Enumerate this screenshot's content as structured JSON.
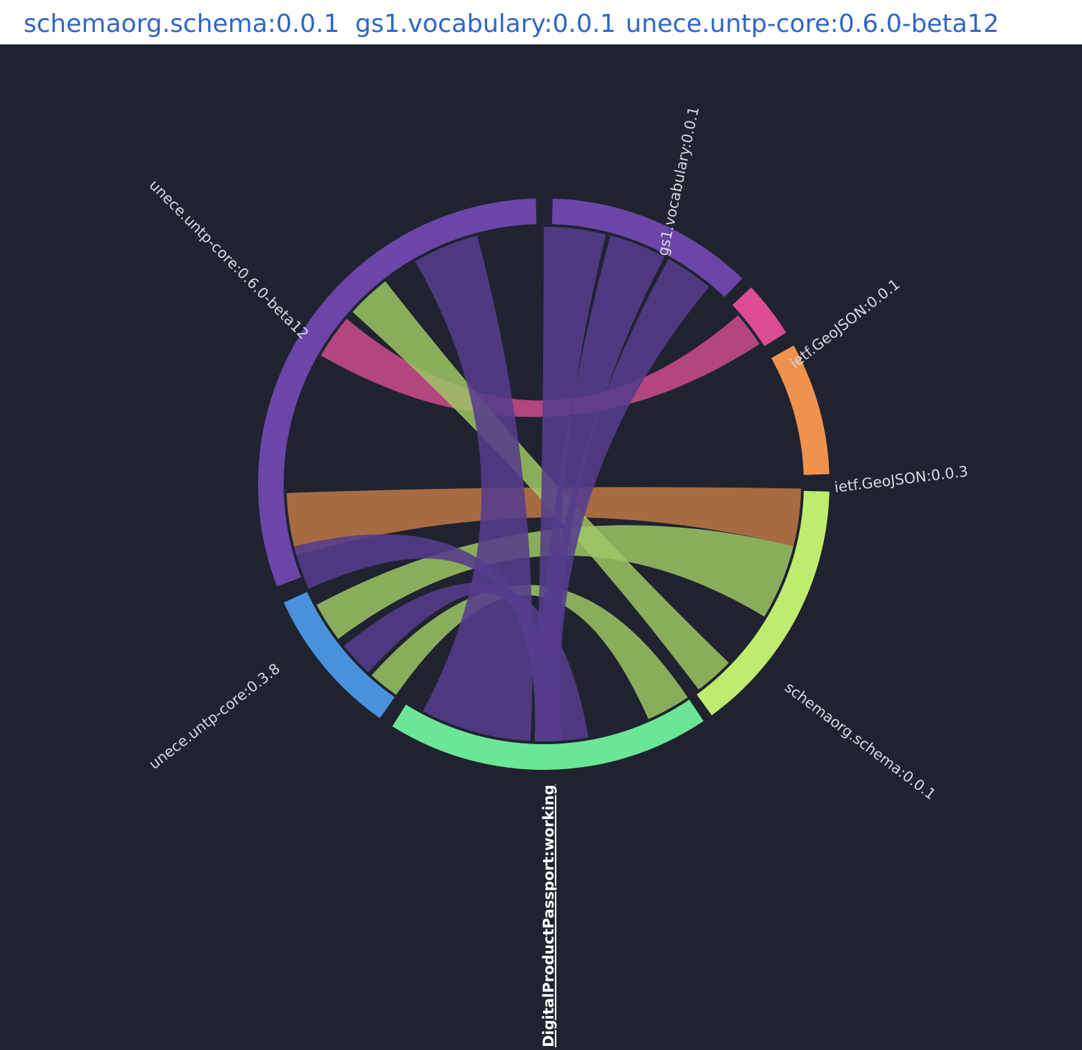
{
  "nav": {
    "links": [
      {
        "label": "schemaorg.schema:0.0.1"
      },
      {
        "label": "gs1.vocabulary:0.0.1"
      },
      {
        "label": "unece.untp-core:0.6.0-beta12"
      }
    ]
  },
  "diagram": {
    "type": "chord",
    "focus_node": "DigitalProductPassport:working",
    "nodes": [
      {
        "name": "gs1.vocabulary:0.0.1",
        "color": "#6b45a8"
      },
      {
        "name": "ietf.GeoJSON:0.0.1",
        "color": "#dd4d93"
      },
      {
        "name": "ietf.GeoJSON:0.0.3",
        "color": "#ef9250"
      },
      {
        "name": "schemaorg.schema:0.0.1",
        "color": "#bfeb6e"
      },
      {
        "name": "DigitalProductPassport:working",
        "color": "#6be696"
      },
      {
        "name": "unece.untp-core:0.3.8",
        "color": "#4a91dc"
      },
      {
        "name": "unece.untp-core:0.6.0-beta12",
        "color": "#6b45a8"
      }
    ],
    "chord_colors": {
      "purple": "#553c8c",
      "orange": "#bb7545",
      "green": "#9dc564",
      "pink": "#c84a8a"
    }
  }
}
